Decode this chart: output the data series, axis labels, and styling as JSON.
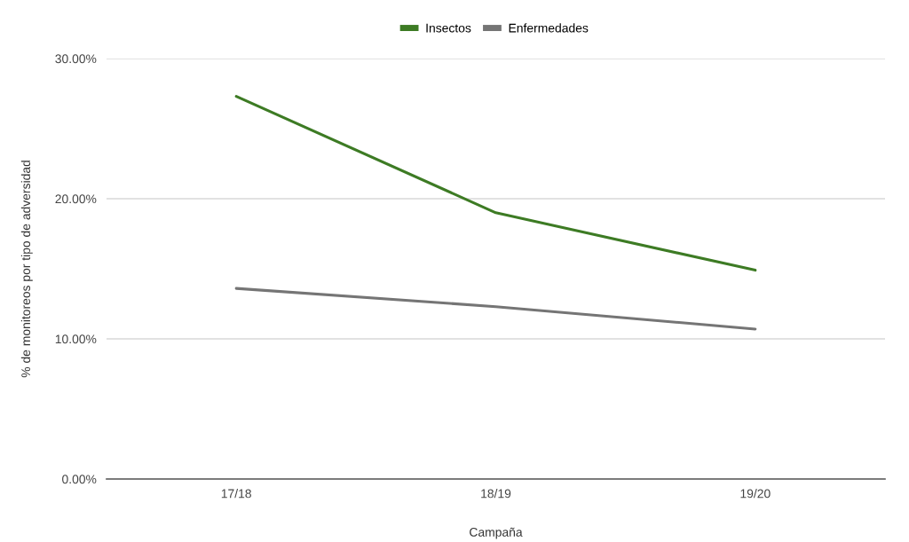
{
  "chart_data": {
    "type": "line",
    "xlabel": "Campaña",
    "ylabel": "% de monitoreos por tipo de adversidad",
    "categories": [
      "17/18",
      "18/19",
      "19/20"
    ],
    "series": [
      {
        "name": "Insectos",
        "color": "#3d7b24",
        "values": [
          27.3,
          19.0,
          14.9
        ]
      },
      {
        "name": "Enfermedades",
        "color": "#757575",
        "values": [
          13.6,
          12.3,
          10.7
        ]
      }
    ],
    "ylim": [
      0,
      30
    ],
    "yticks": [
      {
        "value": 0,
        "label": "0.00%"
      },
      {
        "value": 10,
        "label": "10.00%"
      },
      {
        "value": 20,
        "label": "20.00%"
      },
      {
        "value": 30,
        "label": "30.00%"
      }
    ],
    "grid": "y",
    "legend": "top"
  }
}
